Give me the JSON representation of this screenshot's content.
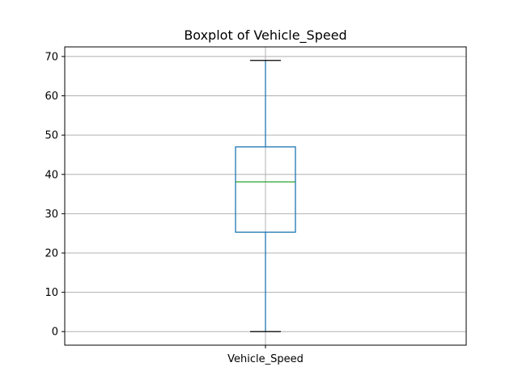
{
  "chart_data": {
    "type": "box",
    "title": "Boxplot of Vehicle_Speed",
    "categories": [
      "Vehicle_Speed"
    ],
    "ylim": [
      -3.45,
      72.45
    ],
    "yticks": [
      0,
      10,
      20,
      30,
      40,
      50,
      60,
      70
    ],
    "grid": true,
    "boxes": [
      {
        "category": "Vehicle_Speed",
        "whisker_low": 0,
        "q1": 25.3,
        "median": 38.1,
        "q3": 47,
        "whisker_high": 69
      }
    ],
    "colors": {
      "box": "#1f77b4",
      "median": "#2ca02c",
      "caps": "#000000",
      "grid": "#b0b0b0"
    }
  }
}
